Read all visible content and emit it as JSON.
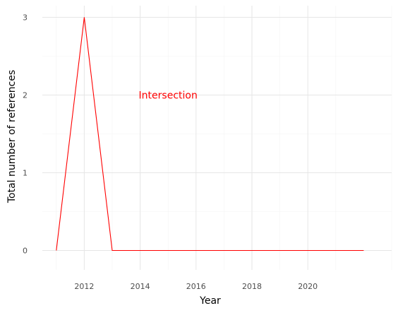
{
  "chart_data": {
    "type": "line",
    "title": "",
    "xlabel": "Year",
    "ylabel": "Total number of references",
    "xlim": [
      2010.5,
      2023.0
    ],
    "ylim": [
      -0.25,
      3.15
    ],
    "x_ticks": [
      2012,
      2014,
      2016,
      2018,
      2020
    ],
    "x_tick_labels": [
      "2012",
      "2014",
      "2016",
      "2018",
      "2020"
    ],
    "y_ticks": [
      0,
      1,
      2,
      3
    ],
    "y_tick_labels": [
      "0",
      "1",
      "2",
      "3"
    ],
    "grid": true,
    "legend": "none",
    "series": [
      {
        "color": "#ff0000",
        "x": [
          2011,
          2012,
          2013,
          2014,
          2015,
          2016,
          2017,
          2018,
          2019,
          2020,
          2021,
          2022
        ],
        "y": [
          0,
          3,
          0,
          0,
          0,
          0,
          0,
          0,
          0,
          0,
          0,
          0
        ]
      }
    ],
    "annotations": [
      {
        "text": "Intersection",
        "x": 2015.0,
        "y": 2.0,
        "color": "#ff0000"
      }
    ]
  }
}
